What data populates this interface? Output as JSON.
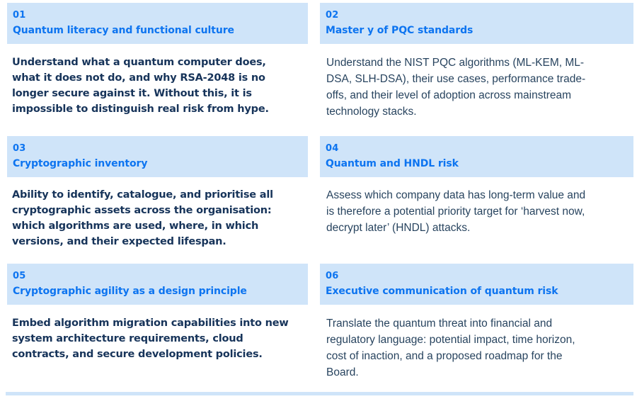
{
  "colors": {
    "header_background": "#cfe4f9",
    "header_text": "#0d74f0",
    "body_text_left_bold": "#17345a",
    "body_text_right": "#28445f",
    "page_background": "#ffffff"
  },
  "cards": [
    {
      "number": "01",
      "title": "Quantum literacy and functional culture",
      "body_lines": [
        "Understand what a quantum computer does,",
        "what it does not do, and why RSA-2048 is no",
        "longer secure against it. Without this, it is",
        "impossible to distinguish real risk from hype."
      ]
    },
    {
      "number": "02",
      "title": "Master y of PQC standards",
      "body_lines": [
        "Understand the NIST PQC algorithms (ML-KEM, ML-",
        "DSA, SLH-DSA), their use cases, performance trade-",
        "offs, and their level of adoption across mainstream",
        "technology stacks."
      ]
    },
    {
      "number": "03",
      "title": "Cryptographic inventory",
      "body_lines": [
        "Ability to identify, catalogue, and prioritise all",
        "cryptographic assets across the organisation:",
        "which algorithms are used, where, in which",
        "versions, and their expected lifespan."
      ]
    },
    {
      "number": "04",
      "title": "Quantum and HNDL risk",
      "body_lines": [
        "Assess which company data has long-term value and",
        "is therefore a potential priority target for ‘harvest now,",
        "decrypt later’ (HNDL) attacks."
      ]
    },
    {
      "number": "05",
      "title": "Cryptographic agility as a design principle",
      "body_lines": [
        "Embed algorithm migration capabilities into new",
        "system architecture requirements, cloud",
        "contracts, and secure development policies."
      ]
    },
    {
      "number": "06",
      "title": "Executive communication of quantum risk",
      "body_lines": [
        "Translate the quantum threat into financial and",
        "regulatory language: potential impact, time horizon,",
        "cost of inaction, and a proposed roadmap for the",
        "Board."
      ]
    }
  ]
}
